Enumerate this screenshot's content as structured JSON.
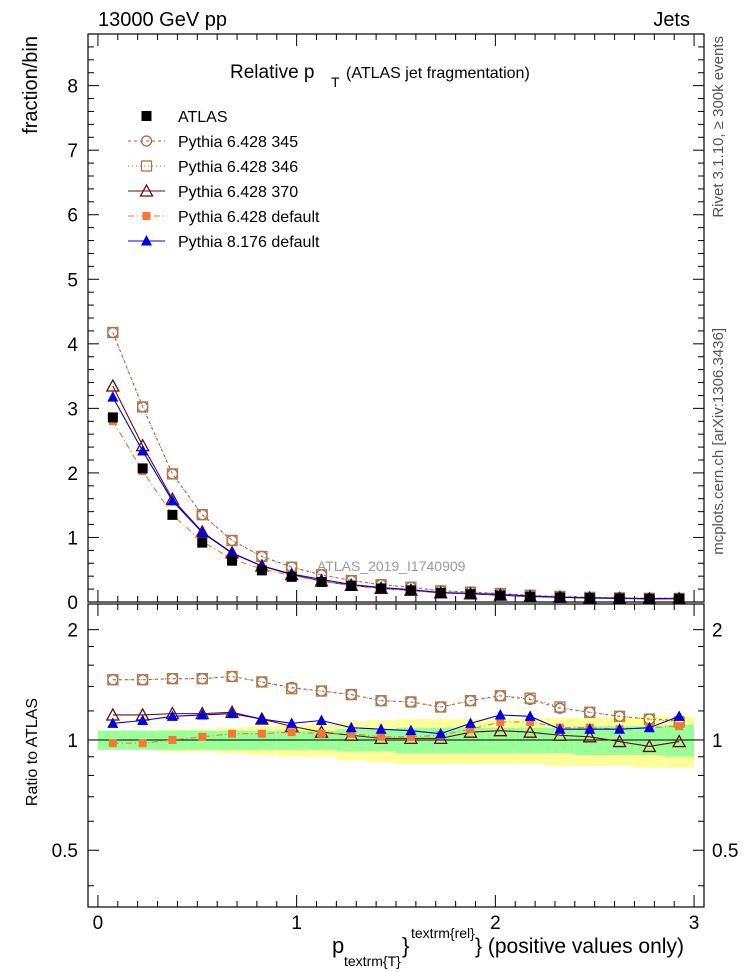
{
  "header": {
    "left": "13000 GeV pp",
    "right": "Jets"
  },
  "side_labels": {
    "top": "Rivet 3.1.10, ≥ 300k events",
    "bottom": "mcplots.cern.ch [arXiv:1306.3436]"
  },
  "watermark": "ATLAS_2019_I1740909",
  "chart_data": {
    "type": "line",
    "title_main": "Relative p",
    "title_sub": "T",
    "title_rest": "(ATLAS jet fragmentation)",
    "ylabel": "fraction/bin",
    "ratio_ylabel": "Ratio to ATLAS",
    "xlabel_p": "p",
    "xlabel_sub": "textrm{T}",
    "xlabel_brace": "}",
    "xlabel_sup": "textrm{rel}",
    "xlabel_rest": "} (positive values only)",
    "xlim": [
      -0.05,
      3.05
    ],
    "ylim": [
      0,
      8.8
    ],
    "ratio_ylim": [
      0.35,
      2.35
    ],
    "x_ticks": [
      "0",
      "1",
      "2",
      "3"
    ],
    "y_ticks": [
      "0",
      "1",
      "2",
      "3",
      "4",
      "5",
      "6",
      "7",
      "8"
    ],
    "ratio_ticks": [
      "0.5",
      "1",
      "2"
    ],
    "x": [
      0.075,
      0.225,
      0.375,
      0.525,
      0.675,
      0.825,
      0.975,
      1.125,
      1.275,
      1.425,
      1.575,
      1.725,
      1.875,
      2.025,
      2.175,
      2.325,
      2.475,
      2.625,
      2.775,
      2.925
    ],
    "band_inner": [
      0.06,
      0.06,
      0.06,
      0.06,
      0.06,
      0.06,
      0.06,
      0.06,
      0.07,
      0.07,
      0.08,
      0.08,
      0.08,
      0.08,
      0.08,
      0.08,
      0.09,
      0.09,
      0.09,
      0.1
    ],
    "band_outer": [
      0.06,
      0.06,
      0.07,
      0.07,
      0.08,
      0.09,
      0.1,
      0.1,
      0.12,
      0.13,
      0.14,
      0.14,
      0.14,
      0.14,
      0.14,
      0.15,
      0.15,
      0.15,
      0.16,
      0.16
    ],
    "data": {
      "name": "ATLAS",
      "color": "#000000",
      "values": [
        2.86,
        2.07,
        1.35,
        0.92,
        0.64,
        0.49,
        0.39,
        0.31,
        0.25,
        0.21,
        0.18,
        0.14,
        0.12,
        0.1,
        0.08,
        0.07,
        0.06,
        0.055,
        0.05,
        0.05
      ]
    },
    "series": [
      {
        "name": "Pythia 6.428 345",
        "color": "#b55e4a",
        "marker": "circle-open",
        "dash": "3,3",
        "ratio": [
          1.46,
          1.46,
          1.47,
          1.47,
          1.49,
          1.44,
          1.39,
          1.36,
          1.33,
          1.28,
          1.27,
          1.23,
          1.28,
          1.32,
          1.29,
          1.22,
          1.19,
          1.16,
          1.14,
          1.13
        ]
      },
      {
        "name": "Pythia 6.428 346",
        "color": "#a87a4a",
        "marker": "square-open",
        "dash": "1,3",
        "ratio": [
          1.46,
          1.46,
          1.47,
          1.47,
          1.49,
          1.44,
          1.38,
          1.36,
          1.33,
          1.28,
          1.27,
          1.23,
          1.28,
          1.32,
          1.3,
          1.23,
          1.19,
          1.16,
          1.14,
          1.12
        ]
      },
      {
        "name": "Pythia 6.428 370",
        "color": "#6a0a10",
        "marker": "triangle-open",
        "dash": "",
        "ratio": [
          1.17,
          1.17,
          1.18,
          1.18,
          1.19,
          1.14,
          1.09,
          1.05,
          1.03,
          1.01,
          1.01,
          1.01,
          1.05,
          1.06,
          1.05,
          1.03,
          1.02,
          0.99,
          0.96,
          0.99
        ]
      },
      {
        "name": "Pythia 6.428 default",
        "color": "#f37833",
        "marker": "square-filled",
        "dash": "6,3,1,3",
        "ratio": [
          0.98,
          0.98,
          1.0,
          1.02,
          1.04,
          1.04,
          1.05,
          1.04,
          1.04,
          1.02,
          1.02,
          1.03,
          1.07,
          1.12,
          1.12,
          1.08,
          1.08,
          1.07,
          1.08,
          1.09
        ]
      },
      {
        "name": "Pythia 8.176 default",
        "color": "#0000e0",
        "marker": "triangle-filled",
        "dash": "",
        "ratio": [
          1.11,
          1.13,
          1.16,
          1.17,
          1.18,
          1.14,
          1.11,
          1.13,
          1.08,
          1.07,
          1.06,
          1.04,
          1.11,
          1.17,
          1.16,
          1.07,
          1.07,
          1.07,
          1.08,
          1.16
        ]
      }
    ]
  }
}
